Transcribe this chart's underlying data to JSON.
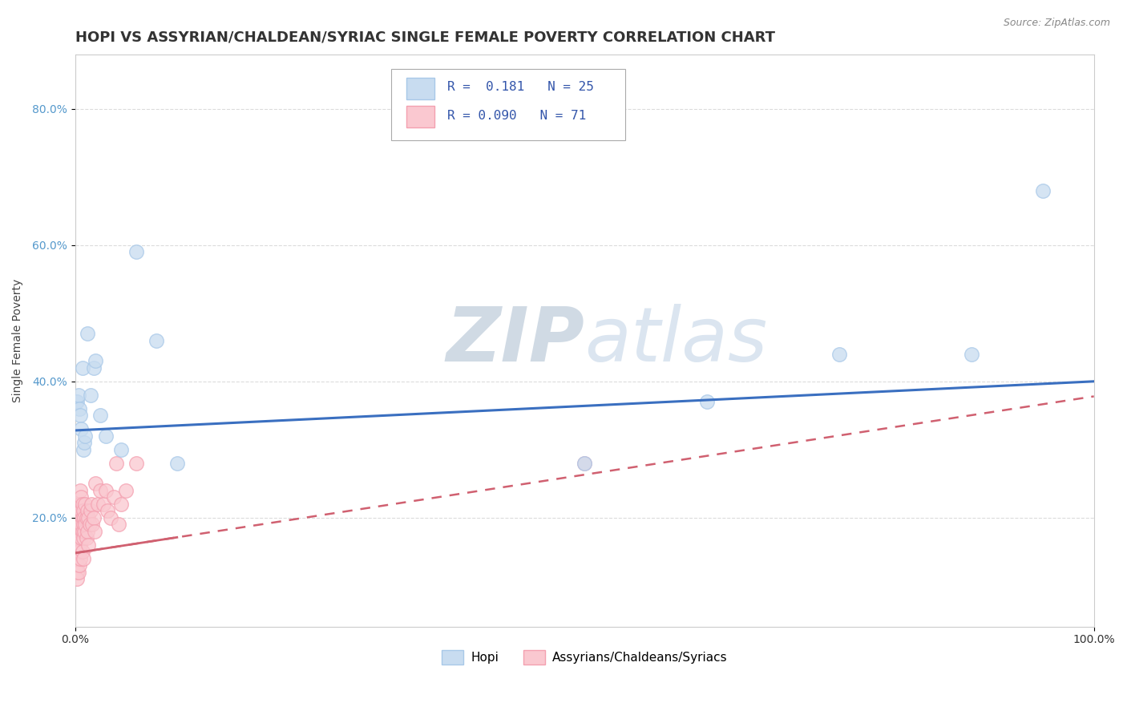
{
  "title": "HOPI VS ASSYRIAN/CHALDEAN/SYRIAC SINGLE FEMALE POVERTY CORRELATION CHART",
  "source": "Source: ZipAtlas.com",
  "ylabel": "Single Female Poverty",
  "xlabel": "",
  "legend_label1": "Hopi",
  "legend_label2": "Assyrians/Chaldeans/Syriacs",
  "R1": 0.181,
  "N1": 25,
  "R2": 0.09,
  "N2": 71,
  "color_blue": "#A8C8E8",
  "color_pink": "#F4A0B0",
  "color_blue_fill": "#C8DCF0",
  "color_pink_fill": "#FAC8D0",
  "color_blue_line": "#3A6FC0",
  "color_pink_line": "#D06070",
  "background": "#FFFFFF",
  "hopi_x": [
    0.001,
    0.002,
    0.003,
    0.004,
    0.005,
    0.006,
    0.007,
    0.008,
    0.009,
    0.01,
    0.012,
    0.015,
    0.018,
    0.02,
    0.025,
    0.03,
    0.045,
    0.06,
    0.08,
    0.1,
    0.5,
    0.62,
    0.75,
    0.88,
    0.95
  ],
  "hopi_y": [
    0.37,
    0.37,
    0.38,
    0.36,
    0.35,
    0.33,
    0.42,
    0.3,
    0.31,
    0.32,
    0.47,
    0.38,
    0.42,
    0.43,
    0.35,
    0.32,
    0.3,
    0.59,
    0.46,
    0.28,
    0.28,
    0.37,
    0.44,
    0.44,
    0.68
  ],
  "acs_x": [
    0.001,
    0.001,
    0.001,
    0.001,
    0.001,
    0.002,
    0.002,
    0.002,
    0.002,
    0.002,
    0.002,
    0.002,
    0.003,
    0.003,
    0.003,
    0.003,
    0.003,
    0.003,
    0.004,
    0.004,
    0.004,
    0.004,
    0.004,
    0.005,
    0.005,
    0.005,
    0.005,
    0.005,
    0.005,
    0.006,
    0.006,
    0.006,
    0.006,
    0.007,
    0.007,
    0.007,
    0.007,
    0.008,
    0.008,
    0.008,
    0.008,
    0.009,
    0.009,
    0.01,
    0.01,
    0.011,
    0.011,
    0.012,
    0.012,
    0.013,
    0.013,
    0.014,
    0.015,
    0.016,
    0.017,
    0.018,
    0.019,
    0.02,
    0.022,
    0.025,
    0.028,
    0.03,
    0.032,
    0.035,
    0.038,
    0.04,
    0.043,
    0.045,
    0.05,
    0.06,
    0.5
  ],
  "acs_y": [
    0.19,
    0.18,
    0.17,
    0.16,
    0.14,
    0.2,
    0.19,
    0.17,
    0.15,
    0.13,
    0.12,
    0.11,
    0.22,
    0.2,
    0.18,
    0.17,
    0.15,
    0.12,
    0.21,
    0.19,
    0.17,
    0.15,
    0.13,
    0.24,
    0.22,
    0.2,
    0.18,
    0.16,
    0.14,
    0.23,
    0.21,
    0.19,
    0.17,
    0.22,
    0.2,
    0.18,
    0.15,
    0.21,
    0.19,
    0.17,
    0.14,
    0.2,
    0.18,
    0.22,
    0.19,
    0.2,
    0.17,
    0.21,
    0.18,
    0.2,
    0.16,
    0.19,
    0.21,
    0.22,
    0.19,
    0.2,
    0.18,
    0.25,
    0.22,
    0.24,
    0.22,
    0.24,
    0.21,
    0.2,
    0.23,
    0.28,
    0.19,
    0.22,
    0.24,
    0.28,
    0.28
  ],
  "xlim": [
    0.0,
    1.0
  ],
  "ylim": [
    0.04,
    0.88
  ],
  "yticks": [
    0.2,
    0.4,
    0.6,
    0.8
  ],
  "ytick_labels": [
    "20.0%",
    "40.0%",
    "60.0%",
    "80.0%"
  ],
  "xticks": [
    0.0,
    1.0
  ],
  "xtick_labels": [
    "0.0%",
    "100.0%"
  ],
  "watermark_zip": "ZIP",
  "watermark_atlas": "atlas",
  "title_fontsize": 13,
  "axis_fontsize": 10,
  "tick_fontsize": 10
}
